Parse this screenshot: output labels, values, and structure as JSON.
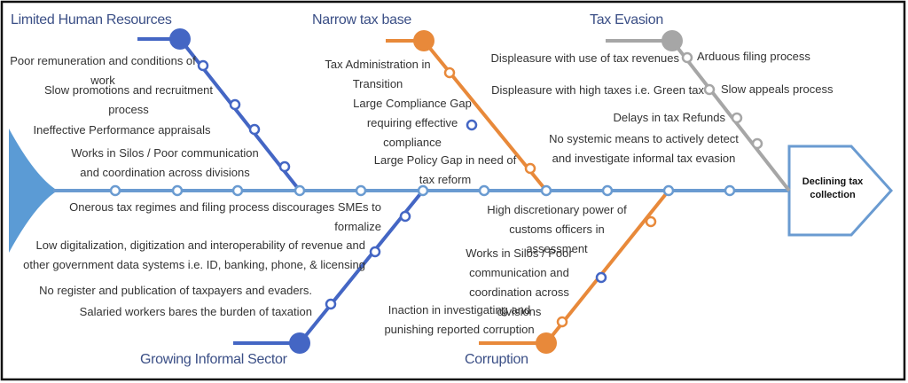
{
  "effect": "Declining tax collection",
  "categories": [
    {
      "label": "Limited Human Resources",
      "causes": [
        "Poor remuneration and conditions of work",
        "Slow promotions and recruitment process",
        "Ineffective Performance appraisals",
        "Works in Silos  / Poor communication and coordination across divisions"
      ]
    },
    {
      "label": "Narrow tax base",
      "causes": [
        "Tax Administration in Transition",
        "Large Compliance Gap requiring effective compliance",
        "Large Policy Gap in need of tax reform"
      ]
    },
    {
      "label": "Tax Evasion",
      "causes": [
        "Displeasure with use of tax revenues",
        "Arduous filing process",
        "Displeasure with high taxes i.e. Green tax",
        "Slow appeals process",
        "Delays in tax Refunds",
        "No systemic means to actively detect and investigate informal tax evasion"
      ]
    },
    {
      "label": "Growing Informal Sector",
      "causes": [
        "Onerous tax regimes and filing process discourages SMEs to formalize",
        "Low digitalization, digitization and interoperability of revenue and other government data systems i.e. ID, banking, phone, & licensing",
        "No register and publication of taxpayers and evaders.",
        "Salaried workers bares the burden of taxation"
      ]
    },
    {
      "label": "Corruption",
      "causes": [
        "High discretionary power of customs officers in assessment",
        "Works in Silos  / Poor communication and coordination across divisions",
        "Inaction in investigating and punishing reported corruption"
      ]
    }
  ]
}
